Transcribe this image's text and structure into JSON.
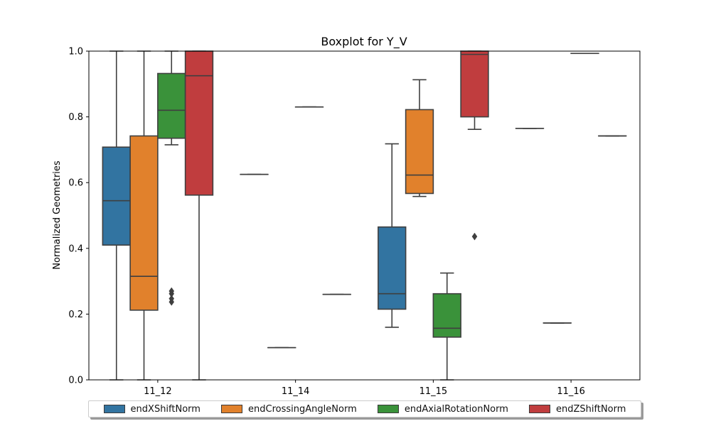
{
  "chart_data": {
    "type": "box",
    "title": "Boxplot for Y_V",
    "xlabel": "",
    "ylabel": "Normalized Geometries",
    "ylim": [
      0.0,
      1.0
    ],
    "yticks": [
      "0.0",
      "0.2",
      "0.4",
      "0.6",
      "0.8",
      "1.0"
    ],
    "categories": [
      "11_12",
      "11_14",
      "11_15",
      "11_16"
    ],
    "legend_position": "bottom",
    "series": [
      {
        "name": "endXShiftNorm",
        "color": "#3274a1",
        "boxes": [
          {
            "whislo": 0.0,
            "q1": 0.41,
            "med": 0.545,
            "q3": 0.708,
            "whishi": 1.0,
            "fliers": []
          },
          {
            "whislo": 0.625,
            "q1": 0.625,
            "med": 0.625,
            "q3": 0.625,
            "whishi": 0.625,
            "fliers": []
          },
          {
            "whislo": 0.16,
            "q1": 0.215,
            "med": 0.262,
            "q3": 0.465,
            "whishi": 0.718,
            "fliers": []
          },
          {
            "whislo": 0.765,
            "q1": 0.765,
            "med": 0.765,
            "q3": 0.765,
            "whishi": 0.765,
            "fliers": []
          }
        ]
      },
      {
        "name": "endCrossingAngleNorm",
        "color": "#e1812c",
        "boxes": [
          {
            "whislo": 0.0,
            "q1": 0.212,
            "med": 0.315,
            "q3": 0.742,
            "whishi": 1.0,
            "fliers": []
          },
          {
            "whislo": 0.098,
            "q1": 0.098,
            "med": 0.098,
            "q3": 0.098,
            "whishi": 0.098,
            "fliers": []
          },
          {
            "whislo": 0.558,
            "q1": 0.567,
            "med": 0.623,
            "q3": 0.822,
            "whishi": 0.913,
            "fliers": []
          },
          {
            "whislo": 0.173,
            "q1": 0.173,
            "med": 0.173,
            "q3": 0.173,
            "whishi": 0.173,
            "fliers": []
          }
        ]
      },
      {
        "name": "endAxialRotationNorm",
        "color": "#3a923a",
        "boxes": [
          {
            "whislo": 0.715,
            "q1": 0.735,
            "med": 0.82,
            "q3": 0.932,
            "whishi": 1.0,
            "fliers": [
              0.237,
              0.247,
              0.262,
              0.27
            ]
          },
          {
            "whislo": 0.83,
            "q1": 0.83,
            "med": 0.83,
            "q3": 0.83,
            "whishi": 0.83,
            "fliers": []
          },
          {
            "whislo": 0.0,
            "q1": 0.13,
            "med": 0.157,
            "q3": 0.262,
            "whishi": 0.325,
            "fliers": []
          },
          {
            "whislo": 0.993,
            "q1": 0.993,
            "med": 0.993,
            "q3": 0.993,
            "whishi": 0.993,
            "fliers": []
          }
        ]
      },
      {
        "name": "endZShiftNorm",
        "color": "#c03d3e",
        "boxes": [
          {
            "whislo": 0.0,
            "q1": 0.562,
            "med": 0.925,
            "q3": 1.0,
            "whishi": 1.0,
            "fliers": []
          },
          {
            "whislo": 0.26,
            "q1": 0.26,
            "med": 0.26,
            "q3": 0.26,
            "whishi": 0.26,
            "fliers": []
          },
          {
            "whislo": 0.762,
            "q1": 0.8,
            "med": 0.99,
            "q3": 1.0,
            "whishi": 1.0,
            "fliers": [
              0.436
            ]
          },
          {
            "whislo": 0.742,
            "q1": 0.742,
            "med": 0.742,
            "q3": 0.742,
            "whishi": 0.742,
            "fliers": []
          }
        ]
      }
    ]
  }
}
